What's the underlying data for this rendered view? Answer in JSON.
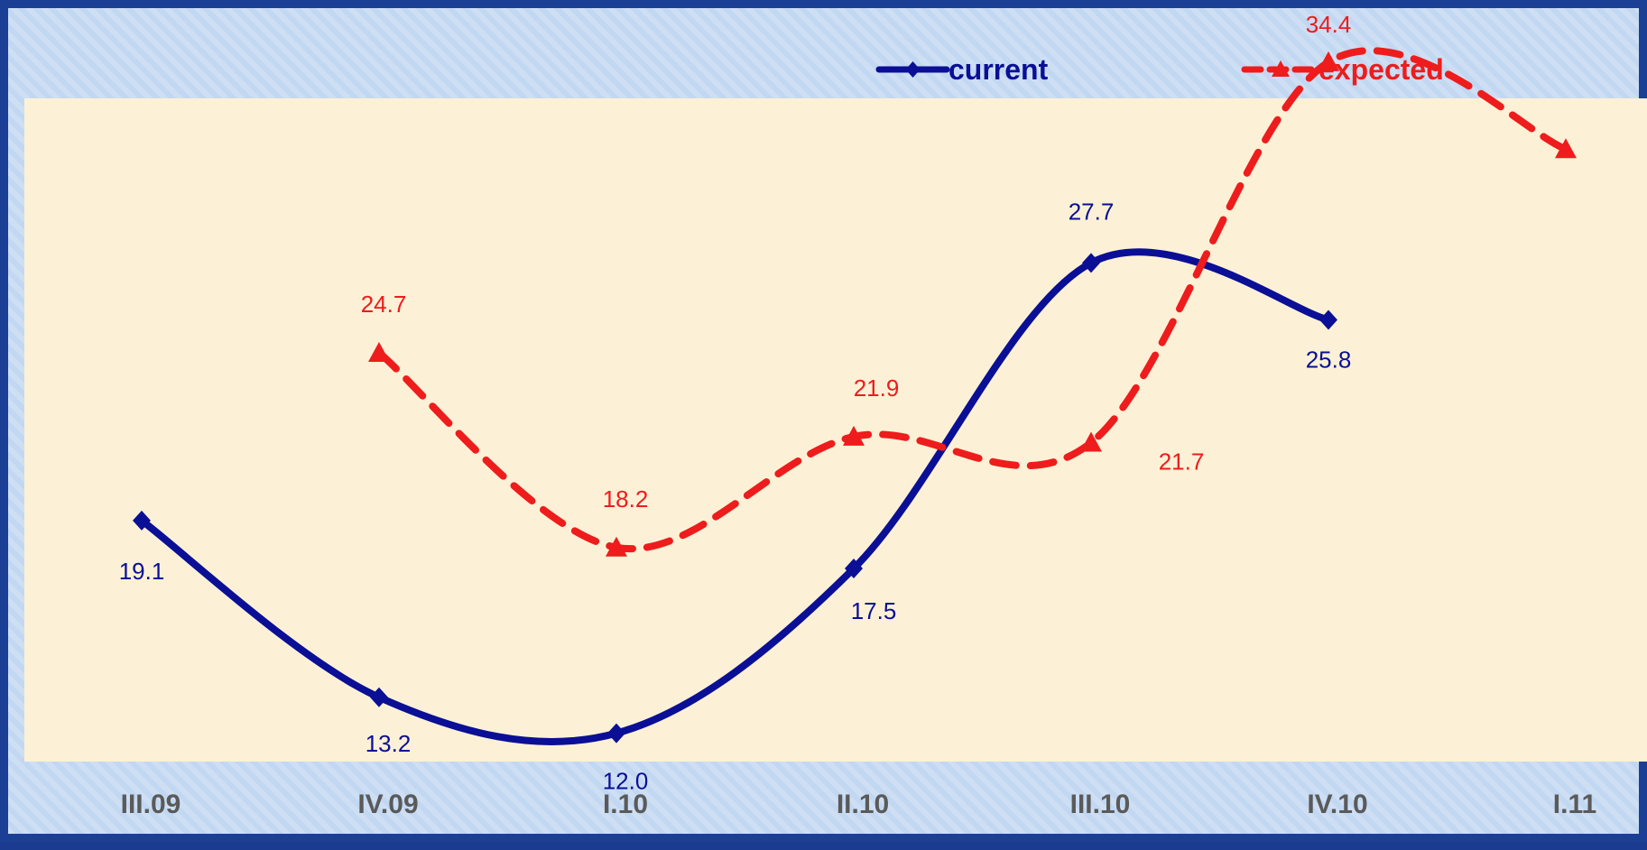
{
  "chart_data": {
    "type": "line",
    "categories": [
      "III.09",
      "IV.09",
      "I.10",
      "II.10",
      "III.10",
      "IV.10",
      "I.11"
    ],
    "series": [
      {
        "name": "current",
        "values": [
          19.1,
          13.2,
          12.0,
          17.5,
          27.7,
          25.8,
          null
        ],
        "color": "#0a0f96",
        "marker": "diamond",
        "line_style": "solid"
      },
      {
        "name": "expected",
        "values": [
          null,
          24.7,
          18.2,
          21.9,
          21.7,
          34.4,
          31.5
        ],
        "color": "#ee1c1c",
        "marker": "triangle",
        "line_style": "dashed"
      }
    ],
    "ylim": [
      0,
      40
    ],
    "smooth": true,
    "grid": false,
    "legend_position": "top-right",
    "plot_background": "#fcf1d6"
  }
}
